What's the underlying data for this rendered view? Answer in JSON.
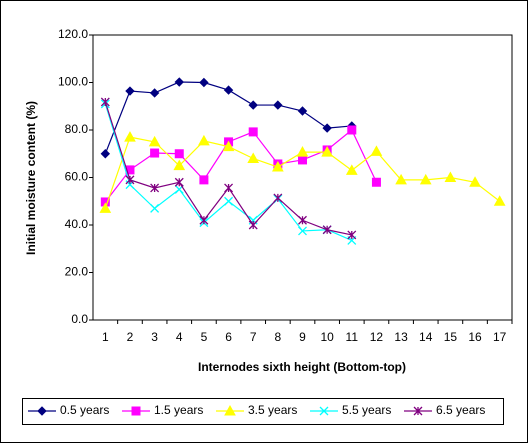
{
  "chart_data": {
    "type": "line",
    "xlabel": "Internodes sixth height (Bottom-top)",
    "ylabel": "Initial moisture content (%)",
    "categories": [
      "1",
      "2",
      "3",
      "4",
      "5",
      "6",
      "7",
      "8",
      "9",
      "10",
      "11",
      "12",
      "13",
      "14",
      "15",
      "16",
      "17"
    ],
    "ylim": [
      0,
      120
    ],
    "yticks": [
      {
        "value": 0,
        "label": "0.0"
      },
      {
        "value": 20,
        "label": "20.0"
      },
      {
        "value": 40,
        "label": "40.0"
      },
      {
        "value": 60,
        "label": "60.0"
      },
      {
        "value": 80,
        "label": "80.0"
      },
      {
        "value": 100,
        "label": "100.0"
      },
      {
        "value": 120,
        "label": "120.0"
      }
    ],
    "grid": false,
    "legend": "bottom",
    "series": [
      {
        "name": "0.5 years",
        "color": "#000080",
        "marker": "diamond",
        "values": [
          70,
          96.4,
          95.6,
          100.2,
          100,
          96.8,
          90.5,
          90.5,
          88,
          80.8,
          81.7,
          null,
          null,
          null,
          null,
          null,
          null
        ]
      },
      {
        "name": "1.5 years",
        "color": "#ff00ff",
        "marker": "square",
        "values": [
          49.7,
          63.2,
          70.3,
          70,
          59,
          75,
          79.2,
          65.7,
          67.4,
          71.6,
          80,
          58,
          null,
          null,
          null,
          null,
          null
        ]
      },
      {
        "name": "3.5 years",
        "color": "#ffff00",
        "marker": "triangle",
        "values": [
          47,
          77,
          75,
          65,
          75.4,
          73,
          68,
          64.4,
          70.7,
          70.7,
          63,
          71,
          59,
          59,
          60,
          58,
          50
        ]
      },
      {
        "name": "5.5 years",
        "color": "#00ffff",
        "marker": "x",
        "values": [
          91,
          57,
          47,
          55,
          41,
          50,
          42,
          51,
          37.5,
          38,
          33.5,
          null,
          null,
          null,
          null,
          null,
          null
        ]
      },
      {
        "name": "6.5 years",
        "color": "#800080",
        "marker": "star",
        "values": [
          91.8,
          59,
          55.6,
          58,
          42,
          55.6,
          40,
          51.4,
          42,
          38,
          35.8,
          null,
          null,
          null,
          null,
          null,
          null
        ]
      }
    ]
  }
}
